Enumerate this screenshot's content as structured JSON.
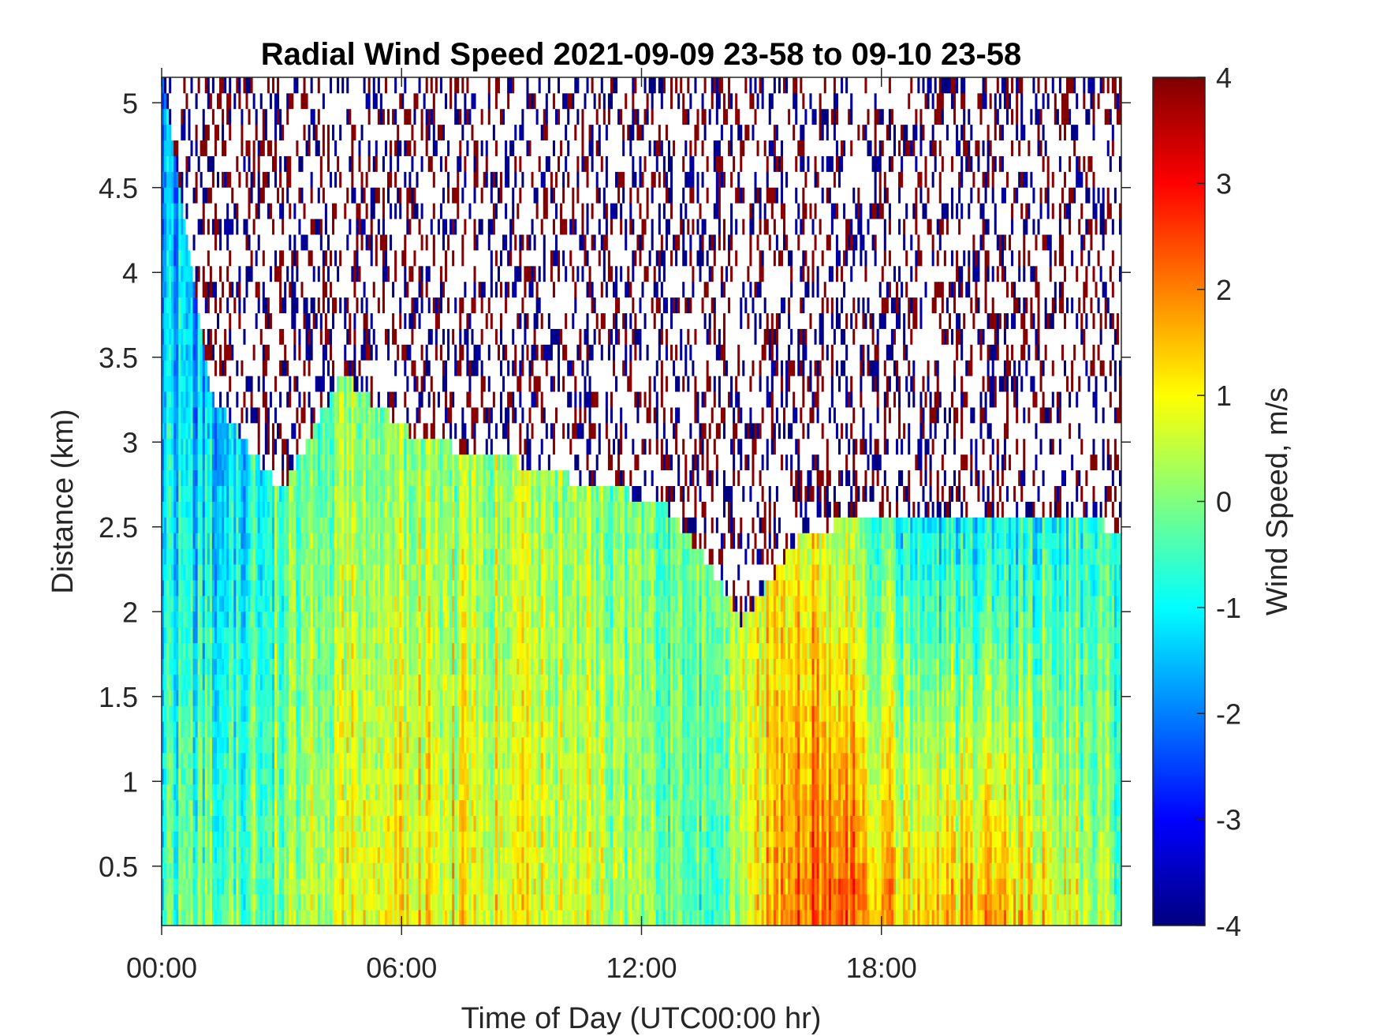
{
  "chart_data": {
    "type": "heatmap",
    "title": "Radial Wind Speed 2021-09-09 23-58 to 09-10 23-58",
    "xlabel": "Time of Day (UTC00:00 hr)",
    "ylabel": "Distance (km)",
    "colorbar_label": "Wind Speed, m/s",
    "colormap": "jet",
    "x_ticks": [
      {
        "value": 0,
        "label": "00:00"
      },
      {
        "value": 6,
        "label": "06:00"
      },
      {
        "value": 12,
        "label": "12:00"
      },
      {
        "value": 18,
        "label": "18:00"
      }
    ],
    "y_ticks": [
      {
        "value": 0.5,
        "label": "0.5"
      },
      {
        "value": 1,
        "label": "1"
      },
      {
        "value": 1.5,
        "label": "1.5"
      },
      {
        "value": 2,
        "label": "2"
      },
      {
        "value": 2.5,
        "label": "2.5"
      },
      {
        "value": 3,
        "label": "3"
      },
      {
        "value": 3.5,
        "label": "3.5"
      },
      {
        "value": 4,
        "label": "4"
      },
      {
        "value": 4.5,
        "label": "4.5"
      },
      {
        "value": 5,
        "label": "5"
      }
    ],
    "colorbar_ticks": [
      {
        "value": 4,
        "label": "4"
      },
      {
        "value": 3,
        "label": "3"
      },
      {
        "value": 2,
        "label": "2"
      },
      {
        "value": 1,
        "label": "1"
      },
      {
        "value": 0,
        "label": "0"
      },
      {
        "value": -1,
        "label": "-1"
      },
      {
        "value": -2,
        "label": "-2"
      },
      {
        "value": -3,
        "label": "-3"
      },
      {
        "value": -4,
        "label": "-4"
      }
    ],
    "xlim": [
      0,
      24
    ],
    "ylim": [
      0.15,
      5.15
    ],
    "clim": [
      -4,
      4
    ],
    "grid": false,
    "noise_boundary": [
      {
        "x": 0.0,
        "y": 5.15
      },
      {
        "x": 1.2,
        "y": 3.3
      },
      {
        "x": 3.0,
        "y": 2.7
      },
      {
        "x": 4.5,
        "y": 3.4
      },
      {
        "x": 6.5,
        "y": 3.0
      },
      {
        "x": 8.0,
        "y": 2.95
      },
      {
        "x": 10.0,
        "y": 2.8
      },
      {
        "x": 12.5,
        "y": 2.65
      },
      {
        "x": 13.5,
        "y": 2.35
      },
      {
        "x": 14.5,
        "y": 1.95
      },
      {
        "x": 16.0,
        "y": 2.45
      },
      {
        "x": 18.0,
        "y": 2.6
      },
      {
        "x": 20.0,
        "y": 2.6
      },
      {
        "x": 22.0,
        "y": 2.55
      },
      {
        "x": 24.0,
        "y": 2.5
      }
    ],
    "mean_speed_profile": [
      {
        "x": 0.0,
        "y_low": -0.3,
        "y_high": -1.6
      },
      {
        "x": 1.0,
        "y_low": -0.2,
        "y_high": -1.8
      },
      {
        "x": 3.0,
        "y_low": 0.0,
        "y_high": -0.4
      },
      {
        "x": 5.5,
        "y_low": 1.2,
        "y_high": 0.2
      },
      {
        "x": 9.0,
        "y_low": 0.9,
        "y_high": 0.3
      },
      {
        "x": 12.0,
        "y_low": 0.2,
        "y_high": -0.2
      },
      {
        "x": 14.0,
        "y_low": -0.6,
        "y_high": 0.0
      },
      {
        "x": 15.5,
        "y_low": 2.0,
        "y_high": 1.2
      },
      {
        "x": 17.0,
        "y_low": 2.5,
        "y_high": 0.5
      },
      {
        "x": 19.0,
        "y_low": 1.2,
        "y_high": -1.3
      },
      {
        "x": 21.0,
        "y_low": 1.8,
        "y_high": -1.0
      },
      {
        "x": 24.0,
        "y_low": 0.0,
        "y_high": -0.5
      }
    ]
  }
}
